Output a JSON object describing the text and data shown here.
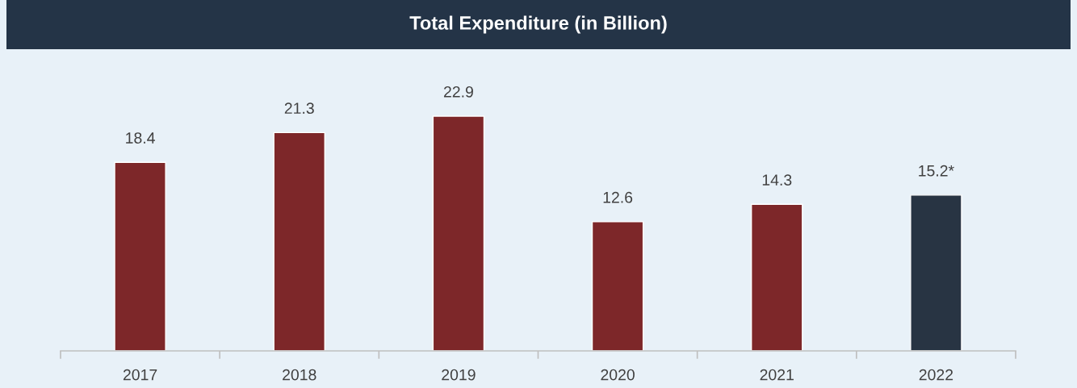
{
  "chart_data": {
    "type": "bar",
    "title": "Total Expenditure (in Billion)",
    "categories": [
      "2017",
      "2018",
      "2019",
      "2020",
      "2021",
      "2022"
    ],
    "values": [
      18.4,
      21.3,
      22.9,
      12.6,
      14.3,
      15.2
    ],
    "colors": [
      "#8b191c",
      "#8b191c",
      "#8b191c",
      "#8b191c",
      "#8b191c",
      "#243447"
    ],
    "value_labels": [
      "18.4",
      "21.3",
      "22.9",
      "12.6",
      "14.3",
      "15.2*"
    ],
    "grid": false,
    "legend": false
  }
}
